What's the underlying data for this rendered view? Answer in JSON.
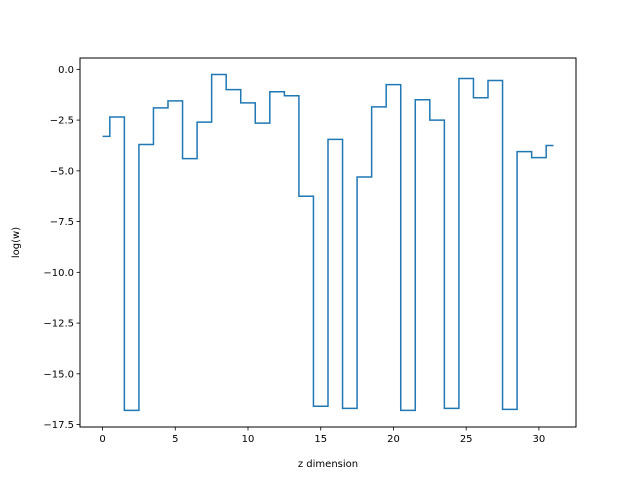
{
  "chart_data": {
    "type": "line",
    "drawstyle": "steps-mid",
    "title": "",
    "xlabel": "z dimension",
    "ylabel": "log(w)",
    "xlim": [
      -1.55,
      32.55
    ],
    "ylim": [
      -17.62,
      0.56
    ],
    "xticks": [
      0,
      5,
      10,
      15,
      20,
      25,
      30
    ],
    "xtick_labels": [
      "0",
      "5",
      "10",
      "15",
      "20",
      "25",
      "30"
    ],
    "yticks": [
      0.0,
      -2.5,
      -5.0,
      -7.5,
      -10.0,
      -12.5,
      -15.0,
      -17.5
    ],
    "ytick_labels": [
      "0.0",
      "−2.5",
      "−5.0",
      "−7.5",
      "−10.0",
      "−12.5",
      "−15.0",
      "−17.5"
    ],
    "grid": false,
    "legend": false,
    "series": [
      {
        "color": "#1f77b4",
        "x": [
          0,
          1,
          2,
          3,
          4,
          5,
          6,
          7,
          8,
          9,
          10,
          11,
          12,
          13,
          14,
          15,
          16,
          17,
          18,
          19,
          20,
          21,
          22,
          23,
          24,
          25,
          26,
          27,
          28,
          29,
          30,
          31
        ],
        "values": [
          -3.3,
          -2.35,
          -16.8,
          -3.7,
          -1.9,
          -1.55,
          -4.4,
          -2.6,
          -0.25,
          -1.0,
          -1.65,
          -2.65,
          -1.1,
          -1.3,
          -6.25,
          -16.6,
          -3.45,
          -16.7,
          -5.3,
          -1.85,
          -0.75,
          -16.8,
          -1.5,
          -2.5,
          -16.7,
          -0.45,
          -1.4,
          -0.55,
          -16.75,
          -4.05,
          -4.35,
          -3.75
        ]
      }
    ]
  }
}
